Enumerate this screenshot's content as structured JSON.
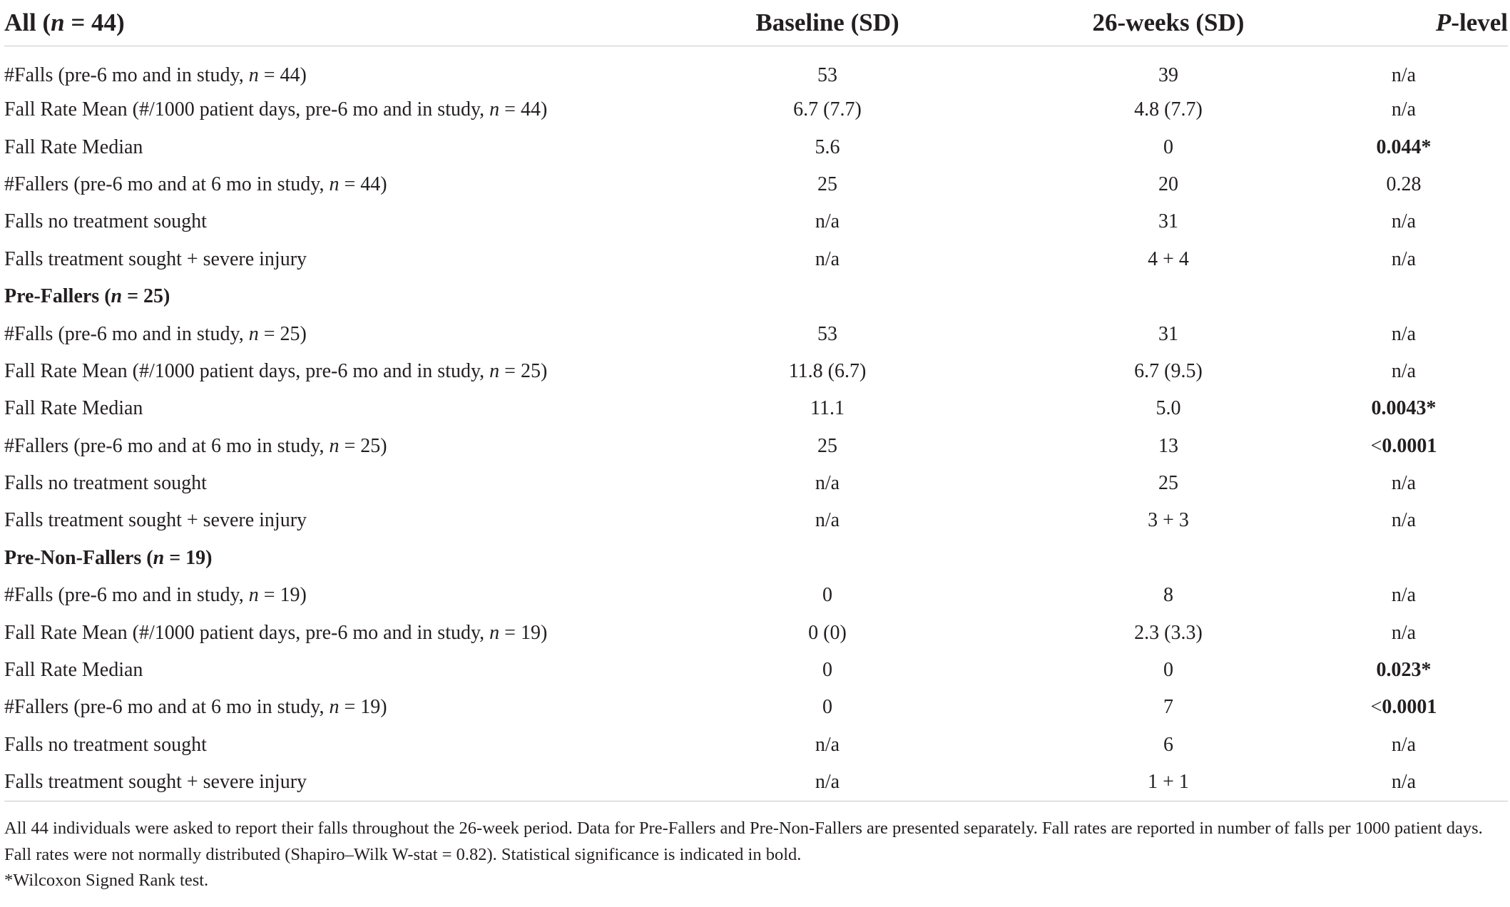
{
  "table": {
    "header": {
      "col1_prefix": "All (",
      "col1_n": "n",
      "col1_suffix": " = 44)",
      "col2": "Baseline (SD)",
      "col3": "26-weeks (SD)",
      "col4_italic": "P",
      "col4_rest": "-level"
    },
    "rows": [
      {
        "label_pre": "#Falls (pre-6 mo and in study, ",
        "label_n": "n",
        "label_post": " = 44)",
        "baseline": "53",
        "week26": "39",
        "p": "n/a",
        "p_bold": false
      },
      {
        "label_pre": "Fall Rate Mean (#/1000 patient days, pre-6 mo and in study, ",
        "label_n": "n",
        "label_post": " = 44)",
        "baseline": "6.7 (7.7)",
        "week26": "4.8 (7.7)",
        "p": "n/a",
        "p_bold": false
      },
      {
        "label_pre": "Fall Rate Median",
        "label_n": "",
        "label_post": "",
        "baseline": "5.6",
        "week26": "0",
        "p": "0.044*",
        "p_bold": true
      },
      {
        "label_pre": "#Fallers (pre-6 mo and at 6 mo in study, ",
        "label_n": "n",
        "label_post": " = 44)",
        "baseline": "25",
        "week26": "20",
        "p": "0.28",
        "p_bold": false
      },
      {
        "label_pre": "Falls no treatment sought",
        "label_n": "",
        "label_post": "",
        "baseline": "n/a",
        "week26": "31",
        "p": "n/a",
        "p_bold": false
      },
      {
        "label_pre": "Falls treatment sought + severe injury",
        "label_n": "",
        "label_post": "",
        "baseline": "n/a",
        "week26": "4 + 4",
        "p": "n/a",
        "p_bold": false
      },
      {
        "section": true,
        "label_pre": "Pre-Fallers (",
        "label_n": "n",
        "label_post": " = 25)"
      },
      {
        "label_pre": "#Falls (pre-6 mo and in study, ",
        "label_n": "n",
        "label_post": " = 25)",
        "baseline": "53",
        "week26": "31",
        "p": "n/a",
        "p_bold": false
      },
      {
        "label_pre": "Fall Rate Mean (#/1000 patient days, pre-6 mo and in study, ",
        "label_n": "n",
        "label_post": " = 25)",
        "baseline": "11.8 (6.7)",
        "week26": "6.7 (9.5)",
        "p": "n/a",
        "p_bold": false
      },
      {
        "label_pre": "Fall Rate Median",
        "label_n": "",
        "label_post": "",
        "baseline": "11.1",
        "week26": "5.0",
        "p": "0.0043*",
        "p_bold": true
      },
      {
        "label_pre": "#Fallers (pre-6 mo and at 6 mo in study, ",
        "label_n": "n",
        "label_post": " = 25)",
        "baseline": "25",
        "week26": "13",
        "p_prefix": "<",
        "p": "0.0001",
        "p_bold": true
      },
      {
        "label_pre": "Falls no treatment sought",
        "label_n": "",
        "label_post": "",
        "baseline": "n/a",
        "week26": "25",
        "p": "n/a",
        "p_bold": false
      },
      {
        "label_pre": "Falls treatment sought + severe injury",
        "label_n": "",
        "label_post": "",
        "baseline": "n/a",
        "week26": "3 + 3",
        "p": "n/a",
        "p_bold": false
      },
      {
        "section": true,
        "label_pre": "Pre-Non-Fallers (",
        "label_n": "n",
        "label_post": " = 19)"
      },
      {
        "label_pre": "#Falls (pre-6 mo and in study, ",
        "label_n": "n",
        "label_post": " = 19)",
        "baseline": "0",
        "week26": "8",
        "p": "n/a",
        "p_bold": false
      },
      {
        "label_pre": "Fall Rate Mean (#/1000 patient days, pre-6 mo and in study, ",
        "label_n": "n",
        "label_post": " = 19)",
        "baseline": "0 (0)",
        "week26": "2.3 (3.3)",
        "p": "n/a",
        "p_bold": false
      },
      {
        "label_pre": "Fall Rate Median",
        "label_n": "",
        "label_post": "",
        "baseline": "0",
        "week26": "0",
        "p": "0.023*",
        "p_bold": true
      },
      {
        "label_pre": "#Fallers (pre-6 mo and at 6 mo in study, ",
        "label_n": "n",
        "label_post": " = 19)",
        "baseline": "0",
        "week26": "7",
        "p_prefix": "<",
        "p": "0.0001",
        "p_bold": true
      },
      {
        "label_pre": "Falls no treatment sought",
        "label_n": "",
        "label_post": "",
        "baseline": "n/a",
        "week26": "6",
        "p": "n/a",
        "p_bold": false
      },
      {
        "label_pre": "Falls treatment sought + severe injury",
        "label_n": "",
        "label_post": "",
        "baseline": "n/a",
        "week26": "1 + 1",
        "p": "n/a",
        "p_bold": false
      }
    ]
  },
  "notes": {
    "description": "All 44 individuals were asked to report their falls throughout the 26-week period. Data for Pre-Fallers and Pre-Non-Fallers are presented separately. Fall rates are reported in number of falls per 1000 patient days. Fall rates were not normally distributed (Shapiro–Wilk W-stat = 0.82). Statistical significance is indicated in bold.",
    "footnote": "*Wilcoxon Signed Rank test."
  }
}
